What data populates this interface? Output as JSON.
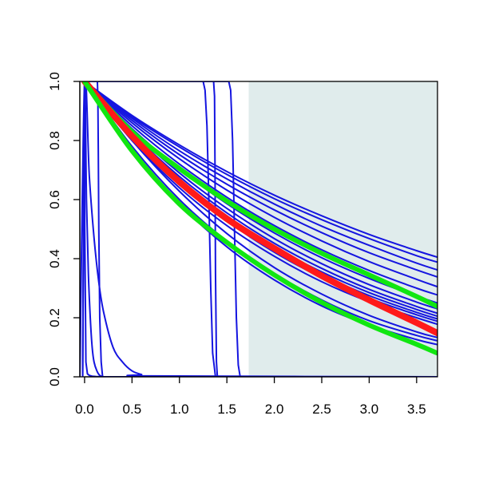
{
  "chart_data": {
    "type": "line",
    "title": "",
    "xlabel": "",
    "ylabel": "",
    "xlim": [
      -0.05,
      3.72
    ],
    "ylim": [
      0.0,
      1.0
    ],
    "xticks": [
      "0.0",
      "0.5",
      "1.0",
      "1.5",
      "2.0",
      "2.5",
      "3.0",
      "3.5"
    ],
    "yticks": [
      "0.0",
      "0.2",
      "0.4",
      "0.6",
      "0.8",
      "1.0"
    ],
    "grid": false,
    "shaded_region": {
      "x_start": 1.73,
      "x_end": 3.72,
      "color": "#e0ecec"
    },
    "colors": {
      "blue": "#1515e0",
      "red": "#ff1a1a",
      "green": "#11e611"
    },
    "series": [
      {
        "kind": "smooth",
        "color": "blue",
        "width": 2,
        "x": [
          0,
          0.5,
          1,
          1.5,
          2,
          2.5,
          3,
          3.5,
          3.72
        ],
        "y": [
          1,
          0.885,
          0.785,
          0.695,
          0.615,
          0.545,
          0.482,
          0.427,
          0.405
        ]
      },
      {
        "kind": "smooth",
        "color": "blue",
        "width": 2,
        "x": [
          0,
          0.5,
          1,
          1.5,
          2,
          2.5,
          3,
          3.5,
          3.72
        ],
        "y": [
          1,
          0.88,
          0.778,
          0.685,
          0.603,
          0.532,
          0.468,
          0.41,
          0.388
        ]
      },
      {
        "kind": "smooth",
        "color": "blue",
        "width": 2,
        "x": [
          0,
          0.5,
          1,
          1.5,
          2,
          2.5,
          3,
          3.5,
          3.72
        ],
        "y": [
          1,
          0.875,
          0.765,
          0.67,
          0.585,
          0.51,
          0.445,
          0.385,
          0.362
        ]
      },
      {
        "kind": "smooth",
        "color": "blue",
        "width": 2,
        "x": [
          0,
          0.5,
          1,
          1.5,
          2,
          2.5,
          3,
          3.5,
          3.72
        ],
        "y": [
          1,
          0.868,
          0.752,
          0.652,
          0.565,
          0.488,
          0.42,
          0.362,
          0.338
        ]
      },
      {
        "kind": "smooth",
        "color": "blue",
        "width": 2,
        "x": [
          0,
          0.5,
          1,
          1.5,
          2,
          2.5,
          3,
          3.5,
          3.72
        ],
        "y": [
          1,
          0.86,
          0.738,
          0.632,
          0.54,
          0.46,
          0.39,
          0.33,
          0.305
        ]
      },
      {
        "kind": "smooth",
        "color": "blue",
        "width": 2,
        "x": [
          0,
          0.5,
          1,
          1.5,
          2,
          2.5,
          3,
          3.5,
          3.72
        ],
        "y": [
          1,
          0.85,
          0.72,
          0.608,
          0.512,
          0.43,
          0.36,
          0.3,
          0.277
        ]
      },
      {
        "kind": "smooth",
        "color": "blue",
        "width": 2,
        "x": [
          0,
          0.5,
          1,
          1.5,
          2,
          2.5,
          3,
          3.5,
          3.72
        ],
        "y": [
          1,
          0.84,
          0.703,
          0.586,
          0.487,
          0.403,
          0.333,
          0.273,
          0.25
        ]
      },
      {
        "kind": "smooth",
        "color": "blue",
        "width": 2,
        "x": [
          0,
          0.5,
          1,
          1.5,
          2,
          2.5,
          3,
          3.5,
          3.72
        ],
        "y": [
          1,
          0.832,
          0.69,
          0.57,
          0.468,
          0.383,
          0.312,
          0.253,
          0.23
        ]
      },
      {
        "kind": "smooth",
        "color": "blue",
        "width": 2,
        "x": [
          0,
          0.5,
          1,
          1.5,
          2,
          2.5,
          3,
          3.5,
          3.72
        ],
        "y": [
          1,
          0.825,
          0.678,
          0.555,
          0.452,
          0.367,
          0.296,
          0.238,
          0.215
        ]
      },
      {
        "kind": "smooth",
        "color": "blue",
        "width": 2,
        "x": [
          0,
          0.5,
          1,
          1.5,
          2,
          2.5,
          3,
          3.5,
          3.72
        ],
        "y": [
          1,
          0.82,
          0.67,
          0.545,
          0.44,
          0.355,
          0.285,
          0.228,
          0.205
        ]
      },
      {
        "kind": "smooth",
        "color": "blue",
        "width": 2,
        "x": [
          0,
          0.5,
          1,
          1.5,
          2,
          2.5,
          3,
          3.5,
          3.72
        ],
        "y": [
          1,
          0.815,
          0.662,
          0.536,
          0.43,
          0.345,
          0.275,
          0.218,
          0.196
        ]
      },
      {
        "kind": "smooth",
        "color": "blue",
        "width": 2,
        "x": [
          0,
          0.5,
          1,
          1.5,
          2,
          2.5,
          3,
          3.5,
          3.72
        ],
        "y": [
          1,
          0.81,
          0.655,
          0.528,
          0.422,
          0.336,
          0.266,
          0.21,
          0.188
        ]
      },
      {
        "kind": "smooth",
        "color": "blue",
        "width": 2,
        "x": [
          0,
          0.5,
          1,
          1.5,
          2,
          2.5,
          3,
          3.5,
          3.72
        ],
        "y": [
          1,
          0.8,
          0.64,
          0.512,
          0.408,
          0.322,
          0.254,
          0.2,
          0.178
        ]
      },
      {
        "kind": "smooth",
        "color": "blue",
        "width": 2,
        "x": [
          0,
          0.5,
          1,
          1.5,
          2,
          2.5,
          3,
          3.5,
          3.72
        ],
        "y": [
          1,
          0.8,
          0.628,
          0.485,
          0.37,
          0.28,
          0.208,
          0.152,
          0.133
        ]
      },
      {
        "kind": "smooth",
        "color": "blue",
        "width": 2,
        "x": [
          0,
          0.5,
          1,
          1.5,
          2,
          2.5,
          3,
          3.5,
          3.72
        ],
        "y": [
          1,
          0.78,
          0.6,
          0.46,
          0.35,
          0.26,
          0.19,
          0.14,
          0.122
        ]
      },
      {
        "kind": "smooth",
        "color": "blue",
        "width": 2,
        "x": [
          0,
          0.5,
          1,
          1.5,
          2,
          2.5,
          3,
          3.5,
          3.72
        ],
        "y": [
          1,
          0.77,
          0.585,
          0.44,
          0.328,
          0.24,
          0.175,
          0.126,
          0.109
        ]
      },
      {
        "kind": "smooth",
        "color": "blue",
        "width": 2,
        "x": [
          -0.05,
          0,
          0.05,
          0.1,
          0.15,
          0.2,
          0.3,
          0.4,
          0.5,
          0.6,
          0.7,
          3.72
        ],
        "y": [
          0,
          1,
          0.68,
          0.47,
          0.32,
          0.22,
          0.1,
          0.05,
          0.02,
          0.008,
          0.003,
          0
        ]
      },
      {
        "kind": "smooth",
        "color": "blue",
        "width": 2,
        "x": [
          -0.02,
          0,
          0.02,
          0.04,
          0.06,
          0.08,
          0.1,
          0.13,
          0.16,
          0.2
        ],
        "y": [
          0,
          1,
          0.6,
          0.35,
          0.2,
          0.1,
          0.05,
          0.02,
          0.005,
          0
        ]
      },
      {
        "kind": "linear",
        "color": "blue",
        "width": 2,
        "x": [
          -0.02,
          0,
          0.002,
          0.014,
          0.03,
          0.05,
          0.08,
          0.12,
          0.2
        ],
        "y": [
          0,
          1,
          0.5,
          0.05,
          0.01,
          0.005,
          0.002,
          0.001,
          0
        ]
      },
      {
        "kind": "linear",
        "color": "blue",
        "width": 2,
        "x": [
          0.05,
          0.135,
          0.14,
          0.145,
          0.15,
          0.16,
          0.175,
          0.19,
          3.72
        ],
        "y": [
          1,
          1,
          0.95,
          0.75,
          0.5,
          0.2,
          0.05,
          0,
          0
        ]
      },
      {
        "kind": "linear",
        "color": "blue",
        "width": 2,
        "x": [
          0.05,
          1.25,
          1.27,
          1.29,
          1.31,
          1.33,
          1.35,
          1.38,
          3.72
        ],
        "y": [
          1,
          1,
          0.97,
          0.85,
          0.6,
          0.3,
          0.08,
          0,
          0
        ]
      },
      {
        "kind": "linear",
        "color": "blue",
        "width": 2,
        "x": [
          0.05,
          1.36,
          1.37,
          1.375,
          1.38,
          1.39,
          1.4,
          3.72
        ],
        "y": [
          1,
          1,
          0.95,
          0.7,
          0.35,
          0.05,
          0,
          0
        ]
      },
      {
        "kind": "linear",
        "color": "blue",
        "width": 2,
        "x": [
          0.05,
          1.52,
          1.54,
          1.56,
          1.58,
          1.6,
          1.62,
          1.64,
          3.72
        ],
        "y": [
          1,
          1,
          0.97,
          0.8,
          0.5,
          0.2,
          0.04,
          0,
          0
        ]
      },
      {
        "kind": "smooth",
        "color": "green",
        "width": 6,
        "x": [
          0,
          0.5,
          1,
          1.5,
          2,
          2.5,
          3,
          3.5,
          3.72
        ],
        "y": [
          1,
          0.83,
          0.705,
          0.595,
          0.5,
          0.418,
          0.345,
          0.272,
          0.238
        ]
      },
      {
        "kind": "smooth",
        "color": "red",
        "width": 8,
        "x": [
          0,
          0.5,
          1,
          1.5,
          2,
          2.5,
          3,
          3.5,
          3.72
        ],
        "y": [
          1,
          0.815,
          0.66,
          0.535,
          0.435,
          0.342,
          0.26,
          0.183,
          0.148
        ]
      },
      {
        "kind": "smooth",
        "color": "green",
        "width": 6,
        "x": [
          0,
          0.5,
          1,
          1.5,
          2,
          2.5,
          3,
          3.5,
          3.72
        ],
        "y": [
          1,
          0.765,
          0.585,
          0.455,
          0.345,
          0.252,
          0.175,
          0.11,
          0.08
        ]
      }
    ]
  }
}
